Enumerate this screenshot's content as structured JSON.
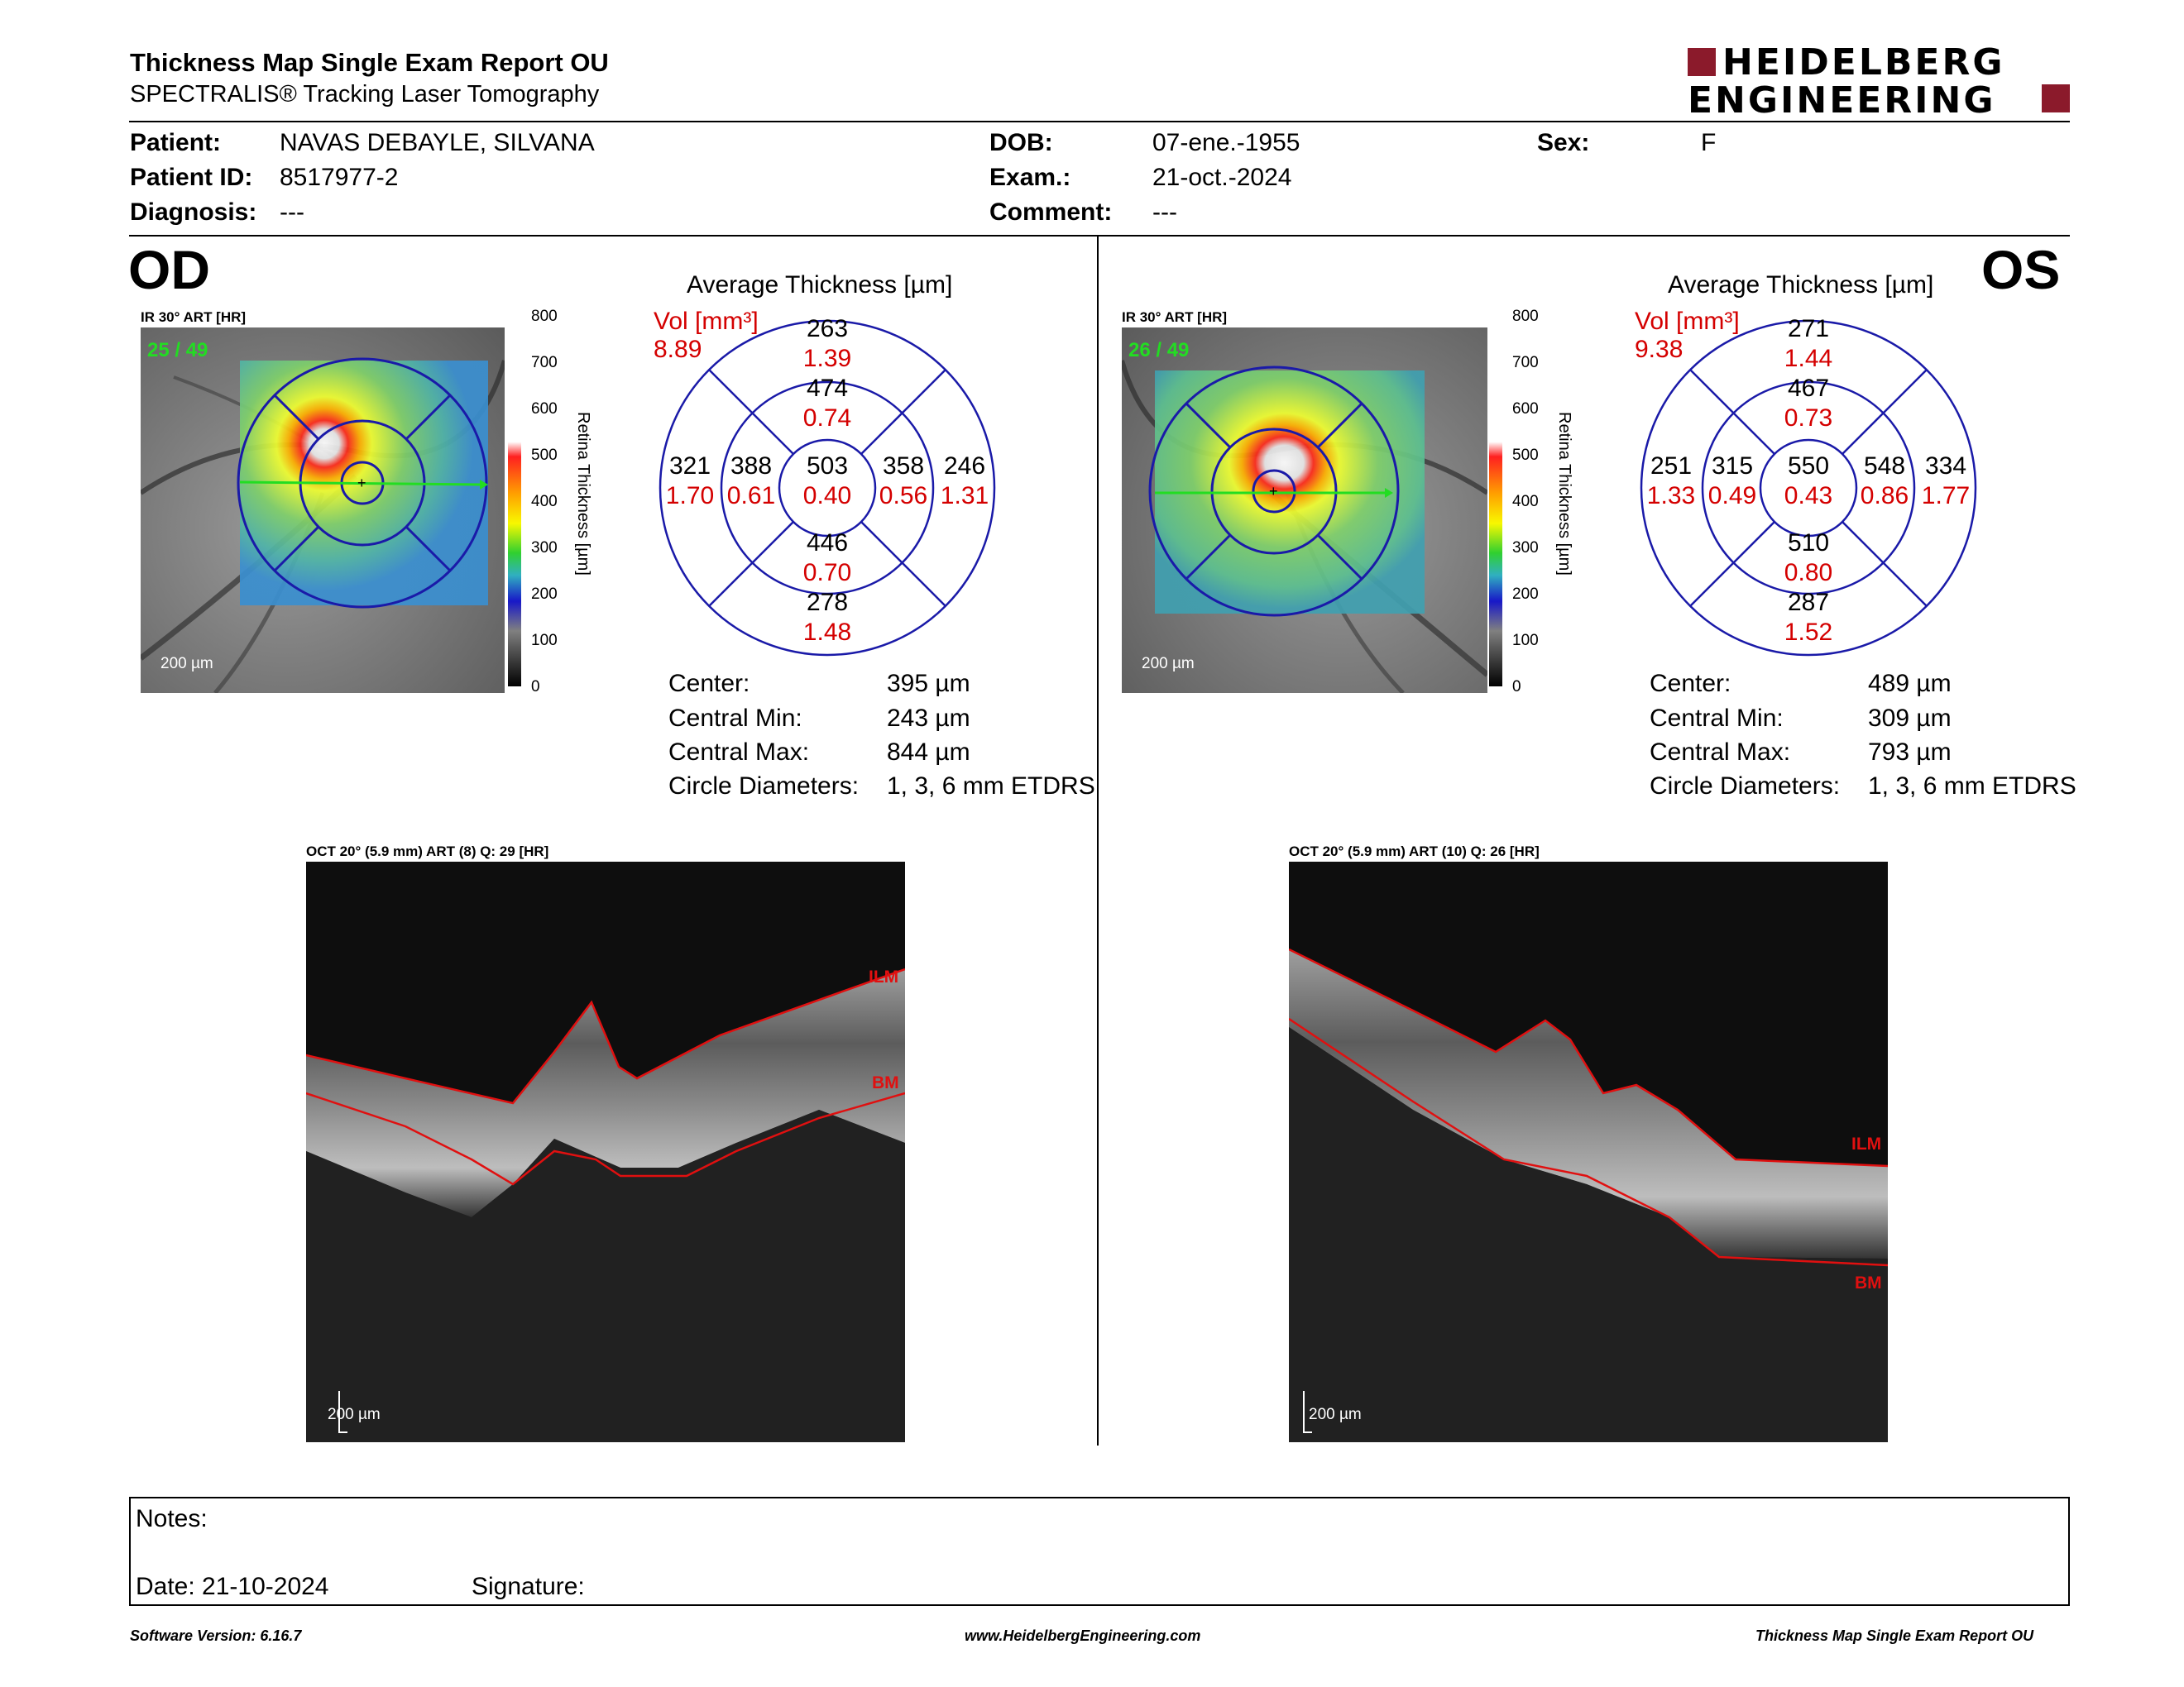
{
  "header": {
    "title": "Thickness Map Single Exam Report OU",
    "subtitle": "SPECTRALIS® Tracking Laser Tomography",
    "logo_line1": "HEIDELBERG",
    "logo_line2": "ENGINEERING"
  },
  "patient": {
    "patient_label": "Patient:",
    "patient_value": "NAVAS DEBAYLE, SILVANA",
    "id_label": "Patient ID:",
    "id_value": "8517977-2",
    "diag_label": "Diagnosis:",
    "diag_value": "---",
    "dob_label": "DOB:",
    "dob_value": "07-ene.-1955",
    "exam_label": "Exam.:",
    "exam_value": "21-oct.-2024",
    "comment_label": "Comment:",
    "comment_value": "---",
    "sex_label": "Sex:",
    "sex_value": "F"
  },
  "colors": {
    "red": "#d40000",
    "blue": "#1a1aa8",
    "brand": "#8b1a2b"
  },
  "scale": {
    "title": "Retina Thickness [µm]",
    "ticks": [
      "800",
      "700",
      "600",
      "500",
      "400",
      "300",
      "200",
      "100",
      "0"
    ]
  },
  "od": {
    "eye": "OD",
    "ir_label": "IR 30° ART [HR]",
    "frames": "25 / 49",
    "scale_bar": "200 µm",
    "avg_title": "Average Thickness [µm]",
    "vol_label": "Vol [mm³]",
    "vol_value": "8.89",
    "sectors": {
      "top_outer": "263",
      "top_outer_vol": "1.39",
      "top_inner": "474",
      "top_inner_vol": "0.74",
      "left_outer": "321",
      "left_outer_vol": "1.70",
      "left_inner": "388",
      "left_inner_vol": "0.61",
      "center": "503",
      "center_vol": "0.40",
      "right_inner": "358",
      "right_inner_vol": "0.56",
      "right_outer": "246",
      "right_outer_vol": "1.31",
      "bottom_inner": "446",
      "bottom_inner_vol": "0.70",
      "bottom_outer": "278",
      "bottom_outer_vol": "1.48"
    },
    "stats": {
      "center_label": "Center:",
      "center_value": "395 µm",
      "min_label": "Central Min:",
      "min_value": "243 µm",
      "max_label": "Central Max:",
      "max_value": "844 µm",
      "diam_label": "Circle Diameters:",
      "diam_value": "1, 3, 6 mm ETDRS"
    },
    "oct_label": "OCT 20° (5.9 mm) ART (8) Q: 29 [HR]",
    "oct_scale": "200 µm",
    "ilm_label": "ILM",
    "bm_label": "BM"
  },
  "os": {
    "eye": "OS",
    "ir_label": "IR 30° ART [HR]",
    "frames": "26 / 49",
    "scale_bar": "200 µm",
    "avg_title": "Average Thickness [µm]",
    "vol_label": "Vol [mm³]",
    "vol_value": "9.38",
    "sectors": {
      "top_outer": "271",
      "top_outer_vol": "1.44",
      "top_inner": "467",
      "top_inner_vol": "0.73",
      "left_outer": "251",
      "left_outer_vol": "1.33",
      "left_inner": "315",
      "left_inner_vol": "0.49",
      "center": "550",
      "center_vol": "0.43",
      "right_inner": "548",
      "right_inner_vol": "0.86",
      "right_outer": "334",
      "right_outer_vol": "1.77",
      "bottom_inner": "510",
      "bottom_inner_vol": "0.80",
      "bottom_outer": "287",
      "bottom_outer_vol": "1.52"
    },
    "stats": {
      "center_label": "Center:",
      "center_value": "489 µm",
      "min_label": "Central Min:",
      "min_value": "309 µm",
      "max_label": "Central Max:",
      "max_value": "793 µm",
      "diam_label": "Circle Diameters:",
      "diam_value": "1, 3, 6 mm ETDRS"
    },
    "oct_label": "OCT 20° (5.9 mm) ART (10) Q: 26 [HR]",
    "oct_scale": "200 µm",
    "ilm_label": "ILM",
    "bm_label": "BM"
  },
  "notes": {
    "notes_label": "Notes:",
    "date_label": "Date: 21-10-2024",
    "signature_label": "Signature:"
  },
  "footer": {
    "software": "Software Version: 6.16.7",
    "website": "www.HeidelbergEngineering.com",
    "report": "Thickness Map Single Exam Report OU"
  }
}
